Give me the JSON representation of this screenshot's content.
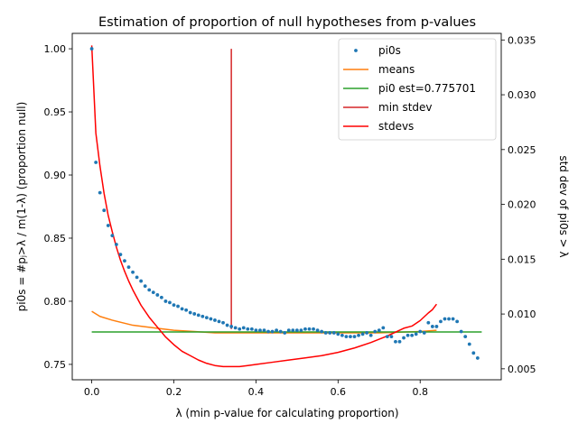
{
  "chart_data": {
    "type": "line",
    "title": "Estimation of proportion of null hypotheses from p-values",
    "xlabel": "λ (min p-value for calculating proportion)",
    "ylabel_left": "pi0s = #pⱼ>λ / m(1-λ) (proportion null)",
    "ylabel_right": "std dev of pi0s > λ",
    "xlim": [
      -0.0475,
      0.9975
    ],
    "ylim_left": [
      0.7378,
      1.0122
    ],
    "ylim_right": [
      0.004,
      0.0356
    ],
    "x_ticks": [
      0.0,
      0.2,
      0.4,
      0.6,
      0.8
    ],
    "x_tick_labels": [
      "0.0",
      "0.2",
      "0.4",
      "0.6",
      "0.8"
    ],
    "y_ticks_left": [
      0.75,
      0.8,
      0.85,
      0.9,
      0.95,
      1.0
    ],
    "y_tick_labels_left": [
      "0.75",
      "0.80",
      "0.85",
      "0.90",
      "0.95",
      "1.00"
    ],
    "y_ticks_right": [
      0.005,
      0.01,
      0.015,
      0.02,
      0.025,
      0.03,
      0.035
    ],
    "y_tick_labels_right": [
      "0.005",
      "0.010",
      "0.015",
      "0.020",
      "0.025",
      "0.030",
      "0.035"
    ],
    "grid": false,
    "legend_position": "top-right",
    "pi0_estimate": 0.775701,
    "min_stdev_lambda": 0.34,
    "series": [
      {
        "name": "pi0s",
        "axis": "left",
        "style": "points",
        "color": "#1f77b4",
        "x": [
          0.0,
          0.01,
          0.02,
          0.03,
          0.04,
          0.05,
          0.06,
          0.07,
          0.08,
          0.09,
          0.1,
          0.11,
          0.12,
          0.13,
          0.14,
          0.15,
          0.16,
          0.17,
          0.18,
          0.19,
          0.2,
          0.21,
          0.22,
          0.23,
          0.24,
          0.25,
          0.26,
          0.27,
          0.28,
          0.29,
          0.3,
          0.31,
          0.32,
          0.33,
          0.34,
          0.35,
          0.36,
          0.37,
          0.38,
          0.39,
          0.4,
          0.41,
          0.42,
          0.43,
          0.44,
          0.45,
          0.46,
          0.47,
          0.48,
          0.49,
          0.5,
          0.51,
          0.52,
          0.53,
          0.54,
          0.55,
          0.56,
          0.57,
          0.58,
          0.59,
          0.6,
          0.61,
          0.62,
          0.63,
          0.64,
          0.65,
          0.66,
          0.67,
          0.68,
          0.69,
          0.7,
          0.71,
          0.72,
          0.73,
          0.74,
          0.75,
          0.76,
          0.77,
          0.78,
          0.79,
          0.8,
          0.81,
          0.82,
          0.83,
          0.84,
          0.85,
          0.86,
          0.87,
          0.88,
          0.89,
          0.9,
          0.91,
          0.92,
          0.93,
          0.94
        ],
        "y": [
          1.0,
          0.91,
          0.886,
          0.872,
          0.86,
          0.852,
          0.845,
          0.837,
          0.832,
          0.827,
          0.823,
          0.819,
          0.816,
          0.812,
          0.809,
          0.807,
          0.805,
          0.803,
          0.8,
          0.799,
          0.797,
          0.796,
          0.794,
          0.793,
          0.791,
          0.79,
          0.789,
          0.788,
          0.787,
          0.786,
          0.785,
          0.784,
          0.783,
          0.781,
          0.78,
          0.779,
          0.778,
          0.779,
          0.778,
          0.778,
          0.777,
          0.777,
          0.777,
          0.776,
          0.776,
          0.777,
          0.776,
          0.775,
          0.777,
          0.777,
          0.777,
          0.777,
          0.778,
          0.778,
          0.778,
          0.777,
          0.776,
          0.775,
          0.775,
          0.775,
          0.774,
          0.773,
          0.772,
          0.772,
          0.772,
          0.773,
          0.774,
          0.775,
          0.773,
          0.776,
          0.777,
          0.779,
          0.772,
          0.772,
          0.768,
          0.768,
          0.771,
          0.773,
          0.773,
          0.774,
          0.776,
          0.775,
          0.783,
          0.78,
          0.78,
          0.784,
          0.786,
          0.786,
          0.786,
          0.784,
          0.776,
          0.772,
          0.766,
          0.759,
          0.755
        ]
      },
      {
        "name": "means",
        "axis": "left",
        "style": "line",
        "color": "#ff7f0e",
        "x": [
          0.0,
          0.02,
          0.05,
          0.1,
          0.15,
          0.2,
          0.25,
          0.3,
          0.35,
          0.4,
          0.5,
          0.6,
          0.7,
          0.8,
          0.84
        ],
        "y": [
          0.792,
          0.788,
          0.785,
          0.781,
          0.779,
          0.777,
          0.776,
          0.775,
          0.775,
          0.775,
          0.775,
          0.775,
          0.775,
          0.776,
          0.777
        ]
      },
      {
        "name": "pi0 est=0.775701",
        "axis": "left",
        "style": "line",
        "color": "#2ca02c",
        "x": [
          0.0,
          0.95
        ],
        "y": [
          0.775701,
          0.775701
        ]
      },
      {
        "name": "min stdev",
        "axis": "left",
        "style": "line",
        "color": "#d62728",
        "x": [
          0.34,
          0.34
        ],
        "y": [
          0.778,
          1.0
        ]
      },
      {
        "name": "stdevs",
        "axis": "right",
        "style": "line",
        "color": "#ff0000",
        "x": [
          0.0,
          0.01,
          0.02,
          0.03,
          0.04,
          0.05,
          0.06,
          0.07,
          0.08,
          0.09,
          0.1,
          0.12,
          0.14,
          0.16,
          0.18,
          0.2,
          0.22,
          0.24,
          0.26,
          0.28,
          0.3,
          0.32,
          0.34,
          0.36,
          0.38,
          0.4,
          0.44,
          0.48,
          0.52,
          0.56,
          0.6,
          0.64,
          0.68,
          0.72,
          0.76,
          0.78,
          0.8,
          0.82,
          0.83,
          0.84
        ],
        "y": [
          0.0345,
          0.0265,
          0.0235,
          0.021,
          0.019,
          0.0175,
          0.0161,
          0.0149,
          0.0139,
          0.013,
          0.0122,
          0.0108,
          0.0097,
          0.0088,
          0.0079,
          0.0072,
          0.0066,
          0.0062,
          0.0058,
          0.0055,
          0.0053,
          0.0052,
          0.0052,
          0.0052,
          0.0053,
          0.0054,
          0.0056,
          0.0058,
          0.006,
          0.0062,
          0.0065,
          0.0069,
          0.0074,
          0.008,
          0.0087,
          0.0089,
          0.0094,
          0.0101,
          0.0104,
          0.0109
        ]
      }
    ]
  }
}
